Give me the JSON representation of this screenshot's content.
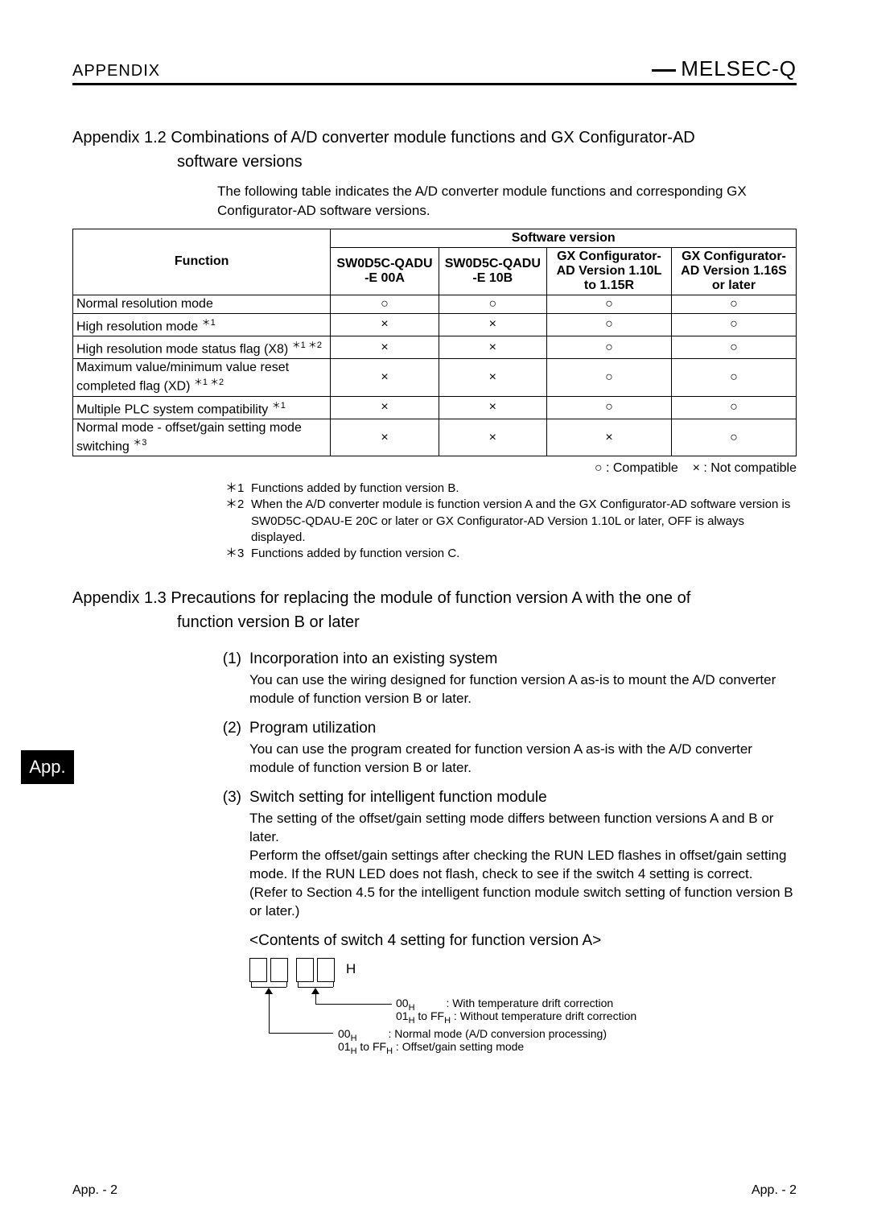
{
  "header": {
    "left": "APPENDIX",
    "right": "MELSEC-Q"
  },
  "section12": {
    "title_line1": "Appendix 1.2 Combinations of A/D converter module functions and GX Configurator-AD",
    "title_line2": "software versions",
    "intro": "The following table indicates the A/D converter module functions and corresponding GX Configurator-AD software versions."
  },
  "table": {
    "function_header": "Function",
    "software_header": "Software version",
    "columns": [
      "SW0D5C-QADU -E 00A",
      "SW0D5C-QADU -E 10B",
      "GX Configurator-AD Version 1.10L to 1.15R",
      "GX Configurator-AD Version 1.16S or later"
    ],
    "rows": [
      {
        "fn": "Normal resolution mode",
        "sup": "",
        "cells": [
          "○",
          "○",
          "○",
          "○"
        ]
      },
      {
        "fn": "High resolution mode ",
        "sup": "＊1",
        "cells": [
          "×",
          "×",
          "○",
          "○"
        ]
      },
      {
        "fn": "High resolution mode status flag (X8) ",
        "sup": "＊1 ＊2",
        "cells": [
          "×",
          "×",
          "○",
          "○"
        ]
      },
      {
        "fn": "Maximum value/minimum value reset completed flag (XD) ",
        "sup": "＊1 ＊2",
        "cells": [
          "×",
          "×",
          "○",
          "○"
        ]
      },
      {
        "fn": "Multiple PLC system compatibility ",
        "sup": "＊1",
        "cells": [
          "×",
          "×",
          "○",
          "○"
        ]
      },
      {
        "fn": "Normal mode - offset/gain setting mode switching ",
        "sup": "＊3",
        "cells": [
          "×",
          "×",
          "×",
          "○"
        ]
      }
    ]
  },
  "legend": {
    "compatible": "○ : Compatible",
    "notcompatible": "× : Not compatible"
  },
  "footnotes": [
    {
      "mark": "＊1",
      "text": "Functions added by function version B."
    },
    {
      "mark": "＊2",
      "text": "When the A/D converter module is function version A and the GX Configurator-AD software version is SW0D5C-QDAU-E 20C or later or GX Configurator-AD Version 1.10L or later, OFF is always displayed."
    },
    {
      "mark": "＊3",
      "text": "Functions added by function version C."
    }
  ],
  "section13": {
    "title_line1": "Appendix 1.3 Precautions for replacing the module of function version A with the one of",
    "title_line2": "function version B or later"
  },
  "items": [
    {
      "num": "(1)",
      "head": "Incorporation into an existing system",
      "body": "You can use the wiring designed for function version A as-is to mount the A/D converter module of function version B or later."
    },
    {
      "num": "(2)",
      "head": "Program utilization",
      "body": "You can use the program created for function version A as-is with the  A/D converter module of function version B or later."
    },
    {
      "num": "(3)",
      "head": "Switch setting for intelligent function module",
      "body": "The setting of the offset/gain setting mode differs between function versions A and B or later.\nPerform the offset/gain settings after checking the RUN LED flashes in offset/gain setting mode. If the RUN LED does not flash, check to see if the switch 4 setting is correct.\n(Refer to Section 4.5 for the intelligent function module switch setting of function version B or later.)"
    }
  ],
  "subhead": "<Contents of switch 4 setting for function version A>",
  "diagram": {
    "H": "H",
    "l1a": "00",
    "l1b": ": With temperature drift correction",
    "l2a": "01",
    "l2b": " to FF",
    "l2c": " : Without temperature drift correction",
    "l3a": "00",
    "l3b": ": Normal mode (A/D conversion processing)",
    "l4a": "01",
    "l4b": " to FF",
    "l4c": " : Offset/gain setting mode"
  },
  "sidetab": "App.",
  "footer": {
    "left": "App. -  2",
    "right": "App. -  2"
  }
}
